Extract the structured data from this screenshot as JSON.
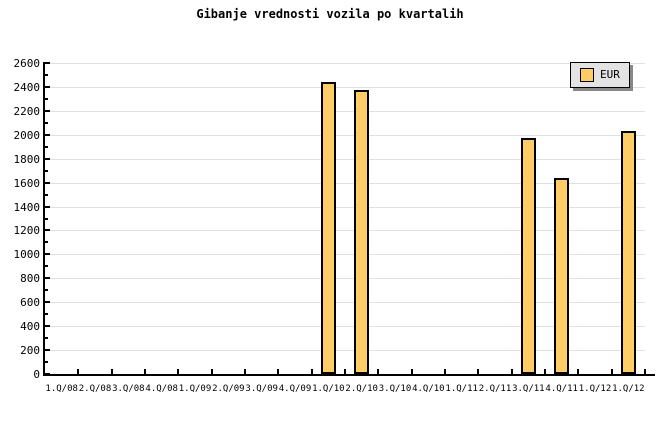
{
  "title": "Gibanje vrednosti vozila po kvartalih",
  "legend": {
    "label": "EUR"
  },
  "colors": {
    "background": "#ffffff",
    "bar_fill": "#ffcc66",
    "bar_border": "#000000",
    "grid": "#e0e0e0",
    "axis": "#000000",
    "legend_bg": "#e3e3e3",
    "legend_border": "#000000",
    "legend_shadow": "#888888",
    "text": "#000000"
  },
  "chart_data": {
    "type": "bar",
    "title": "Gibanje vrednosti vozila po kvartalih",
    "xlabel": "",
    "ylabel": "",
    "categories": [
      "1.Q/08",
      "2.Q/08",
      "3.Q/08",
      "4.Q/08",
      "1.Q/09",
      "2.Q/09",
      "3.Q/09",
      "4.Q/09",
      "1.Q/10",
      "2.Q/10",
      "3.Q/10",
      "4.Q/10",
      "1.Q/11",
      "2.Q/11",
      "3.Q/11",
      "4.Q/11",
      "1.Q/12",
      "1.Q/12"
    ],
    "series": [
      {
        "name": "EUR",
        "values": [
          null,
          null,
          null,
          null,
          null,
          null,
          null,
          null,
          2440,
          2375,
          null,
          null,
          null,
          null,
          1975,
          1640,
          null,
          2030
        ]
      }
    ],
    "ylim": [
      0,
      2600
    ],
    "ytick_step": 200,
    "y_minor_tick_step": 100,
    "yticks": [
      0,
      200,
      400,
      600,
      800,
      1000,
      1200,
      1400,
      1600,
      1800,
      2000,
      2200,
      2400,
      2600
    ],
    "grid": "horizontal",
    "legend_position": "top-right"
  }
}
